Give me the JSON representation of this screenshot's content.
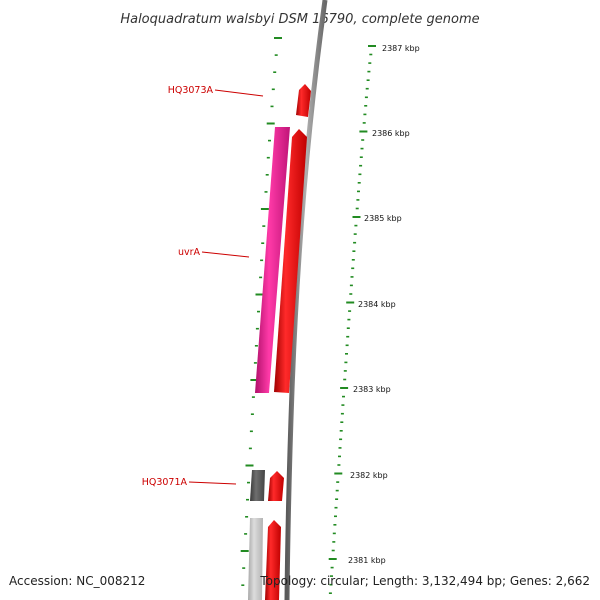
{
  "title": "Haloquadratum walsbyi DSM 16790, complete genome",
  "footer": {
    "accession": "Accession: NC_008212",
    "summary": "Topology: circular; Length: 3,132,494 bp; Genes: 2,662"
  },
  "colors": {
    "forward_cds": "#ff0000",
    "reverse_cds_uvrA": "#ff1493",
    "reverse_cds_HQ3071A": "#5a5a5a",
    "reverse_cds_lower": "#c8c8c8",
    "backbone": "#808080",
    "ticks": "#228b22",
    "label": "#cc0000"
  },
  "kbp_labels": [
    "2387 kbp",
    "2386 kbp",
    "2385 kbp",
    "2384 kbp",
    "2383 kbp",
    "2382 kbp",
    "2381 kbp"
  ],
  "gene_labels": [
    "HQ3073A",
    "uvrA",
    "HQ3071A"
  ]
}
